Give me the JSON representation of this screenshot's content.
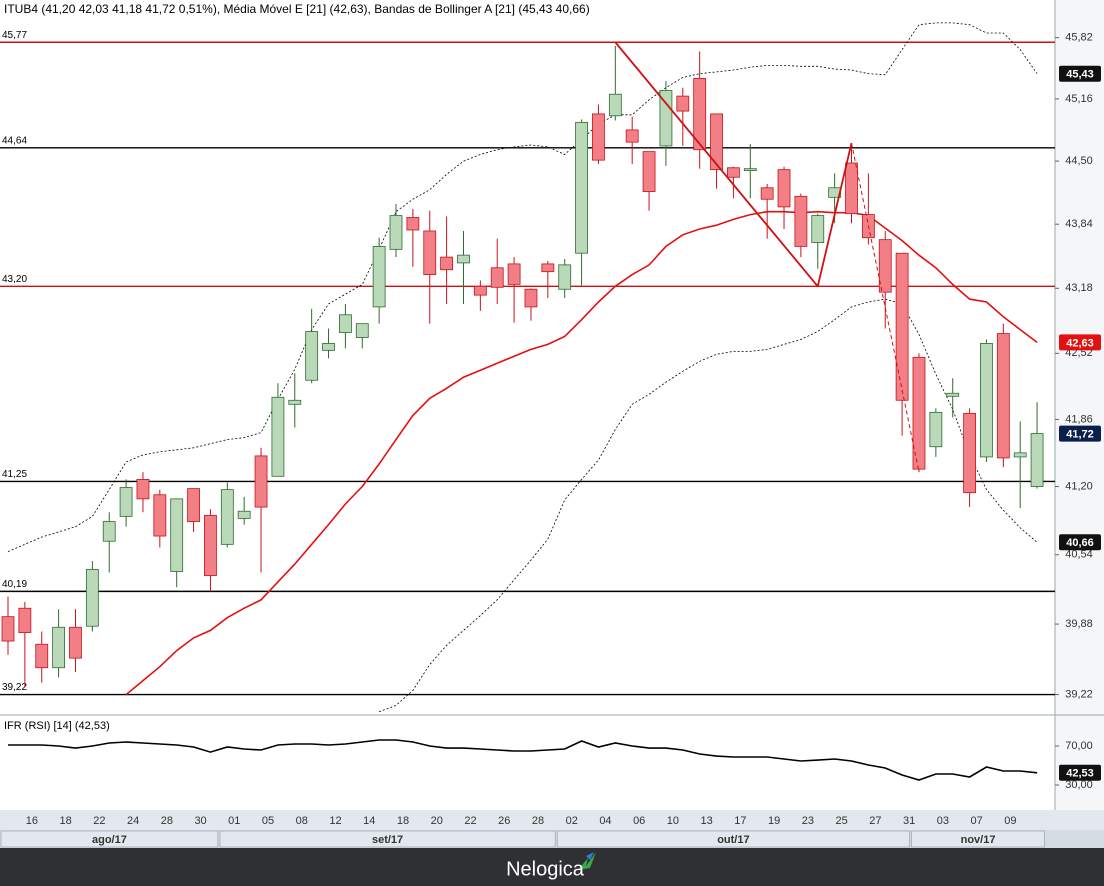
{
  "chart_data": {
    "type": "candlestick",
    "title": "ITUB4 (41,20  42,03  41,18  41,72  0,51%), Média Móvel E [21] (42,63), Bandas de Bollinger A [21] (45,43  40,66)",
    "ylog": true,
    "ylim": [
      39.04,
      46.23
    ],
    "yticks": [
      {
        "value": 45.82,
        "label": "45,82"
      },
      {
        "value": 45.16,
        "label": "45,16"
      },
      {
        "value": 44.5,
        "label": "44,50"
      },
      {
        "value": 43.84,
        "label": "43,84"
      },
      {
        "value": 43.18,
        "label": "43,18"
      },
      {
        "value": 42.52,
        "label": "42,52"
      },
      {
        "value": 41.86,
        "label": "41,86"
      },
      {
        "value": 41.2,
        "label": "41,20"
      },
      {
        "value": 40.54,
        "label": "40,54"
      },
      {
        "value": 39.88,
        "label": "39,88"
      },
      {
        "value": 39.22,
        "label": "39,22"
      }
    ],
    "x_labels": [
      null,
      "16",
      null,
      "18",
      null,
      "22",
      null,
      "24",
      null,
      "28",
      null,
      "30",
      null,
      "01",
      null,
      "05",
      null,
      "08",
      null,
      "12",
      null,
      "14",
      null,
      "18",
      null,
      "20",
      null,
      "22",
      null,
      "26",
      null,
      "28",
      null,
      "02",
      null,
      "04",
      null,
      "06",
      null,
      "10",
      null,
      "13",
      null,
      "17",
      null,
      "19",
      null,
      "23",
      null,
      "25",
      null,
      "27",
      null,
      "31",
      null,
      "03",
      null,
      "07",
      null,
      "09",
      null,
      null
    ],
    "months": [
      {
        "label": "ago/17",
        "candles": 13
      },
      {
        "label": "set/17",
        "candles": 20
      },
      {
        "label": "out/17",
        "candles": 21
      },
      {
        "label": "nov/17",
        "candles": 8
      }
    ],
    "candles": {
      "up_color": "#b9d9b9",
      "up_border": "#2e6b2e",
      "down_color": "#f27f86",
      "down_border": "#c4141c",
      "open": [
        39.95,
        40.03,
        39.69,
        39.47,
        39.85,
        39.86,
        40.67,
        40.91,
        41.27,
        41.12,
        40.38,
        41.18,
        40.92,
        40.64,
        40.89,
        41.5,
        41.3,
        42.01,
        42.25,
        42.55,
        42.73,
        42.68,
        42.99,
        43.58,
        43.91,
        43.77,
        43.5,
        43.44,
        43.2,
        43.39,
        43.43,
        43.17,
        43.43,
        43.17,
        43.54,
        45.0,
        44.98,
        44.83,
        44.6,
        44.66,
        45.19,
        45.38,
        45.0,
        44.43,
        44.4,
        44.22,
        44.41,
        44.13,
        43.65,
        44.12,
        44.48,
        43.94,
        43.68,
        43.54,
        42.48,
        41.59,
        42.09,
        41.92,
        41.49,
        42.72,
        41.49,
        41.2
      ],
      "high": [
        40.14,
        40.09,
        39.81,
        40.02,
        40.02,
        40.48,
        40.95,
        41.27,
        41.34,
        41.17,
        41.08,
        41.18,
        40.98,
        41.24,
        41.1,
        41.58,
        42.22,
        42.32,
        42.97,
        42.77,
        43.02,
        42.82,
        43.7,
        44.05,
        44.0,
        43.98,
        43.92,
        43.77,
        43.26,
        43.69,
        43.5,
        43.18,
        43.46,
        43.48,
        44.94,
        45.1,
        45.73,
        44.97,
        44.6,
        45.35,
        45.28,
        45.67,
        45.0,
        44.44,
        44.68,
        44.26,
        44.44,
        44.16,
        43.95,
        44.37,
        44.63,
        44.37,
        43.77,
        43.54,
        42.52,
        41.97,
        42.27,
        41.97,
        42.66,
        42.82,
        41.84,
        42.03
      ],
      "low": [
        39.59,
        39.29,
        39.33,
        39.38,
        39.43,
        39.81,
        40.37,
        40.81,
        40.95,
        40.61,
        40.23,
        40.76,
        40.19,
        40.61,
        40.83,
        40.37,
        41.3,
        41.78,
        42.22,
        42.47,
        42.57,
        42.57,
        42.82,
        43.5,
        43.4,
        42.82,
        43.02,
        43.02,
        42.95,
        43.02,
        42.83,
        42.85,
        43.08,
        43.08,
        43.21,
        44.47,
        44.93,
        44.47,
        43.98,
        44.45,
        44.66,
        44.42,
        44.21,
        44.11,
        44.11,
        43.69,
        43.79,
        43.5,
        43.38,
        43.85,
        43.85,
        43.63,
        42.77,
        41.7,
        41.34,
        41.49,
        41.88,
        41.0,
        41.44,
        41.39,
        40.99,
        41.18
      ],
      "close": [
        39.72,
        39.8,
        39.47,
        39.85,
        39.56,
        40.4,
        40.86,
        41.19,
        41.08,
        40.72,
        41.08,
        40.86,
        40.34,
        41.17,
        40.96,
        41.0,
        42.08,
        42.05,
        42.74,
        42.62,
        42.91,
        42.82,
        43.61,
        43.93,
        43.78,
        43.32,
        43.37,
        43.52,
        43.11,
        43.19,
        43.22,
        42.99,
        43.35,
        43.42,
        44.91,
        44.51,
        45.21,
        44.7,
        44.18,
        45.25,
        45.03,
        44.62,
        44.41,
        44.33,
        44.42,
        44.1,
        44.02,
        43.61,
        43.93,
        44.22,
        43.95,
        43.7,
        43.14,
        42.05,
        41.37,
        41.93,
        42.12,
        41.14,
        42.62,
        41.48,
        41.53,
        41.72
      ],
      "last_label": "41,72",
      "last_color": "#0b1f4d"
    },
    "moving_average": {
      "color": "#e31010",
      "last_label": "42,63",
      "values": [
        null,
        null,
        null,
        null,
        null,
        null,
        null,
        39.22,
        39.35,
        39.48,
        39.63,
        39.75,
        39.82,
        39.94,
        40.03,
        40.11,
        40.28,
        40.45,
        40.64,
        40.83,
        41.03,
        41.2,
        41.42,
        41.66,
        41.9,
        42.07,
        42.17,
        42.28,
        42.35,
        42.42,
        42.49,
        42.56,
        42.61,
        42.69,
        42.86,
        43.04,
        43.2,
        43.32,
        43.42,
        43.61,
        43.73,
        43.79,
        43.83,
        43.89,
        43.94,
        43.97,
        43.97,
        43.96,
        43.97,
        43.96,
        43.96,
        43.93,
        43.8,
        43.67,
        43.52,
        43.39,
        43.22,
        43.07,
        43.04,
        42.89,
        42.76,
        42.63
      ]
    },
    "bollinger": {
      "color": "#000000",
      "upper_label": "45,43",
      "lower_label": "40,66",
      "upper": [
        40.57,
        40.64,
        40.71,
        40.76,
        40.81,
        40.91,
        41.17,
        41.44,
        41.51,
        41.54,
        41.56,
        41.58,
        41.62,
        41.66,
        41.68,
        41.73,
        42.06,
        42.36,
        42.76,
        43.02,
        43.12,
        43.22,
        43.58,
        43.97,
        44.1,
        44.2,
        44.36,
        44.5,
        44.57,
        44.62,
        44.65,
        44.67,
        44.65,
        44.57,
        44.73,
        44.89,
        44.99,
        44.99,
        45.15,
        45.28,
        45.39,
        45.43,
        45.45,
        45.47,
        45.5,
        45.52,
        45.52,
        45.51,
        45.51,
        45.48,
        45.47,
        45.43,
        45.42,
        45.69,
        45.96,
        45.98,
        45.98,
        45.96,
        45.87,
        45.87,
        45.69,
        45.43
      ],
      "lower": [
        null,
        null,
        null,
        null,
        null,
        null,
        null,
        null,
        null,
        null,
        null,
        null,
        null,
        null,
        null,
        null,
        null,
        null,
        null,
        null,
        null,
        null,
        39.06,
        39.12,
        39.26,
        39.5,
        39.68,
        39.82,
        39.96,
        40.11,
        40.3,
        40.49,
        40.69,
        41.07,
        41.27,
        41.46,
        41.76,
        42.01,
        42.11,
        42.23,
        42.34,
        42.44,
        42.51,
        42.54,
        42.54,
        42.56,
        42.61,
        42.66,
        42.74,
        42.86,
        42.99,
        43.04,
        43.07,
        43.02,
        42.71,
        42.31,
        41.96,
        41.51,
        41.17,
        40.97,
        40.8,
        40.66
      ]
    },
    "hlines": [
      {
        "value": 45.77,
        "label": "45,77",
        "color": "#d01010"
      },
      {
        "value": 44.64,
        "label": "44,64",
        "color": "#000000"
      },
      {
        "value": 43.2,
        "label": "43,20",
        "color": "#d01010"
      },
      {
        "value": 41.25,
        "label": "41,25",
        "color": "#000000"
      },
      {
        "value": 40.19,
        "label": "40,19",
        "color": "#000000"
      },
      {
        "value": 39.22,
        "label": "39,22",
        "color": "#000000"
      }
    ],
    "trendline": {
      "color": "#d01010",
      "x": [
        36,
        48,
        50,
        54
      ],
      "values": [
        45.77,
        43.2,
        44.69,
        41.34
      ]
    },
    "rsi": {
      "title": "IFR (RSI) [14] (42,53)",
      "color": "#000000",
      "last_label": "42,53",
      "ylim": [
        6.4,
        100.8
      ],
      "yticks": [
        {
          "value": 70,
          "label": "70,00"
        },
        {
          "value": 30,
          "label": "30,00"
        }
      ],
      "values": [
        71.0,
        71.0,
        71.0,
        70.0,
        67.9,
        70.0,
        73.1,
        74.1,
        73.1,
        72.1,
        71.0,
        69.0,
        63.8,
        69.0,
        66.9,
        65.9,
        71.0,
        72.1,
        72.1,
        71.0,
        72.1,
        74.1,
        76.2,
        76.2,
        74.1,
        70.0,
        67.9,
        67.9,
        66.9,
        65.9,
        64.9,
        64.9,
        65.9,
        66.9,
        75.1,
        69.0,
        73.1,
        70.0,
        67.9,
        67.9,
        65.9,
        61.8,
        59.7,
        58.7,
        58.7,
        58.7,
        56.7,
        54.6,
        55.6,
        56.7,
        54.6,
        50.5,
        47.4,
        40.3,
        35.1,
        41.3,
        41.3,
        38.2,
        48.5,
        44.4,
        44.4,
        42.53
      ]
    },
    "footer": "Nelogica"
  }
}
